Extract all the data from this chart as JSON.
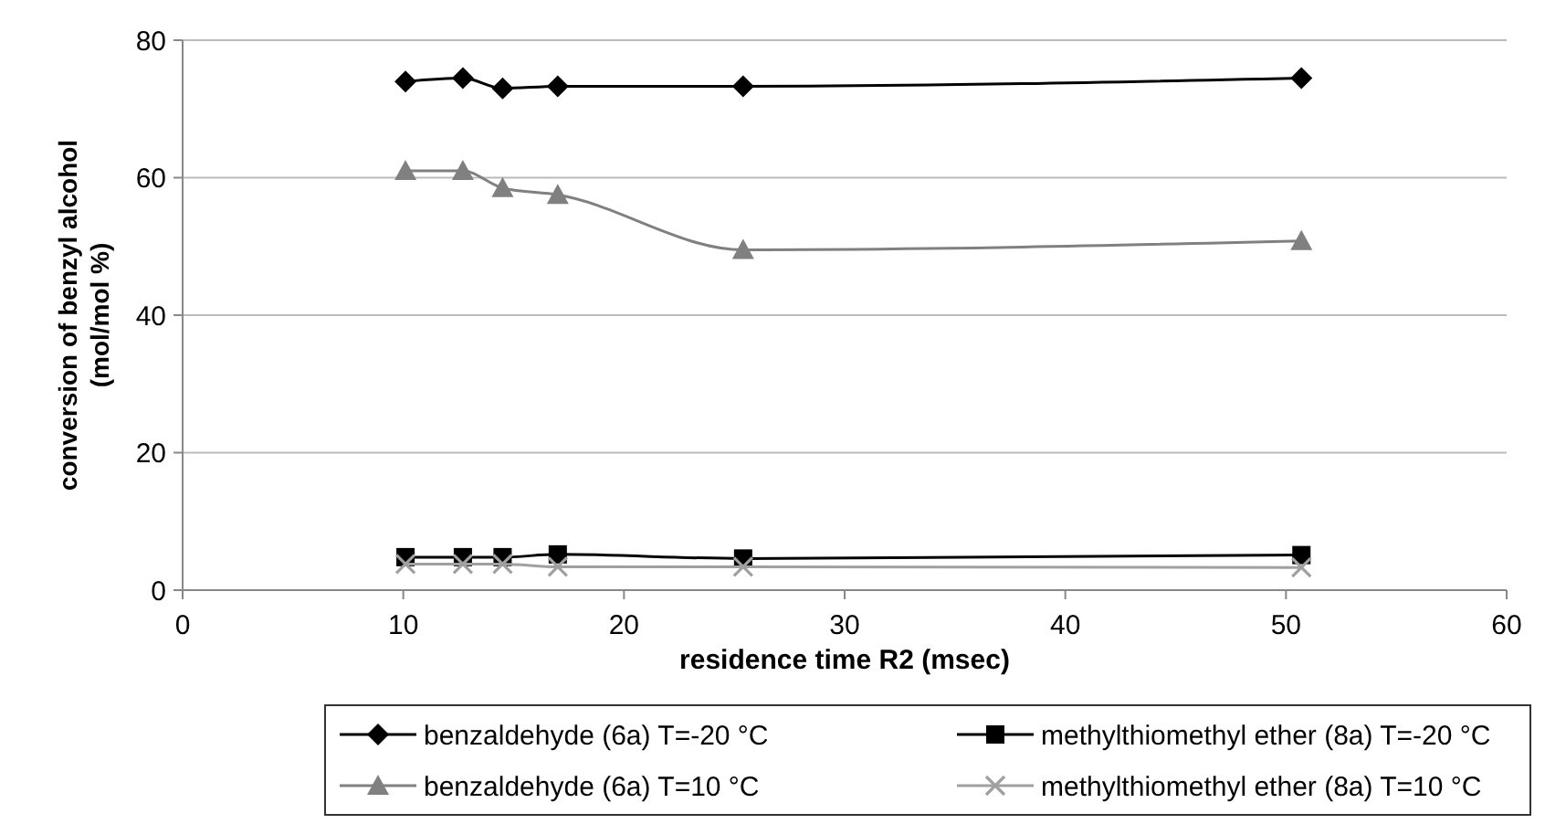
{
  "chart_data": {
    "type": "line",
    "xlabel": "residence time R2 (msec)",
    "ylabel": "conversion of benzyl alcohol (mol/mol %)",
    "xlim": [
      0,
      60
    ],
    "xticks": [
      0,
      10,
      20,
      30,
      40,
      50,
      60
    ],
    "ylim": [
      0,
      80
    ],
    "yticks": [
      0,
      20,
      40,
      60,
      80
    ],
    "grid": "y",
    "legend": "bottom",
    "x": [
      10.1,
      12.7,
      14.5,
      17,
      25.4,
      50.7
    ],
    "series": [
      {
        "name": "benzaldehyde (6a) T=-20 °C",
        "color": "#000000",
        "marker": "diamond",
        "values": [
          74,
          74.5,
          73,
          73.3,
          73.3,
          74.5
        ]
      },
      {
        "name": "methylthiomethyl ether (8a) T=-20 °C",
        "color": "#000000",
        "marker": "square",
        "values": [
          4.8,
          4.8,
          4.8,
          5.2,
          4.6,
          5.1
        ]
      },
      {
        "name": "benzaldehyde (6a) T=10 °C",
        "color": "#808080",
        "marker": "triangle",
        "values": [
          61,
          61,
          58.5,
          57.5,
          49.5,
          50.8
        ]
      },
      {
        "name": "methylthiomethyl ether (8a) T=10 °C",
        "color": "#a0a0a0",
        "marker": "cross",
        "values": [
          3.8,
          3.8,
          3.8,
          3.4,
          3.4,
          3.3
        ]
      }
    ]
  }
}
